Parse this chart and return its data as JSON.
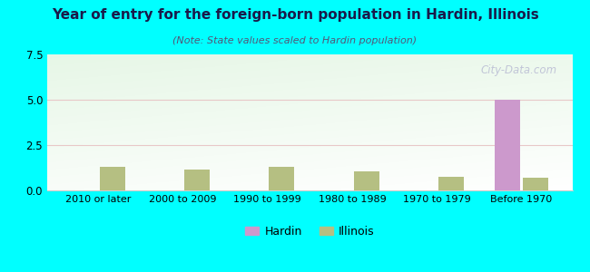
{
  "title": "Year of entry for the foreign-born population in Hardin, Illinois",
  "subtitle": "(Note: State values scaled to Hardin population)",
  "categories": [
    "2010 or later",
    "2000 to 2009",
    "1990 to 1999",
    "1980 to 1989",
    "1970 to 1979",
    "Before 1970"
  ],
  "hardin_values": [
    0,
    0,
    0,
    0,
    0,
    5
  ],
  "illinois_values": [
    1.3,
    1.15,
    1.3,
    1.05,
    0.75,
    0.7
  ],
  "hardin_color": "#cc99cc",
  "illinois_color": "#b5bf82",
  "background_color": "#00ffff",
  "ylim": [
    0,
    7.5
  ],
  "yticks": [
    0,
    2.5,
    5,
    7.5
  ],
  "bar_width": 0.3,
  "watermark": "City-Data.com",
  "title_fontsize": 11,
  "subtitle_fontsize": 8
}
